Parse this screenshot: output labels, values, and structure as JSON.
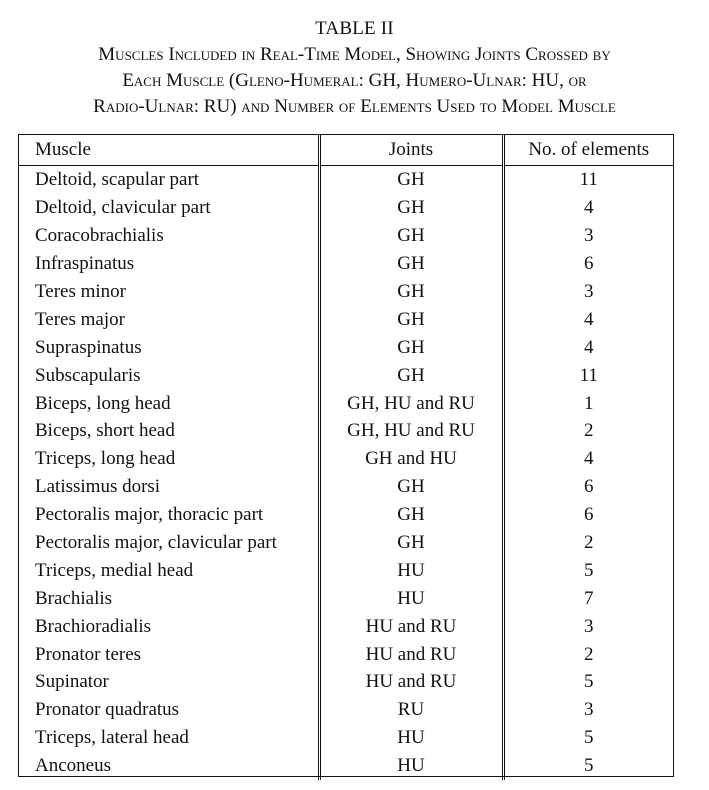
{
  "caption": {
    "title": "TABLE II",
    "lines": [
      "Muscles Included in Real-Time Model, Showing Joints Crossed by",
      "Each Muscle (Gleno-Humeral: GH, Humero-Ulnar: HU, or",
      "Radio-Ulnar: RU) and Number of Elements Used to Model Muscle"
    ]
  },
  "table": {
    "headers": [
      "Muscle",
      "Joints",
      "No. of elements"
    ],
    "rows": [
      [
        "Deltoid, scapular part",
        "GH",
        "11"
      ],
      [
        "Deltoid, clavicular part",
        "GH",
        "4"
      ],
      [
        "Coracobrachialis",
        "GH",
        "3"
      ],
      [
        "Infraspinatus",
        "GH",
        "6"
      ],
      [
        "Teres minor",
        "GH",
        "3"
      ],
      [
        "Teres major",
        "GH",
        "4"
      ],
      [
        "Supraspinatus",
        "GH",
        "4"
      ],
      [
        "Subscapularis",
        "GH",
        "11"
      ],
      [
        "Biceps, long head",
        "GH, HU and RU",
        "1"
      ],
      [
        "Biceps, short head",
        "GH, HU and RU",
        "2"
      ],
      [
        "Triceps, long head",
        "GH and HU",
        "4"
      ],
      [
        "Latissimus dorsi",
        "GH",
        "6"
      ],
      [
        "Pectoralis major, thoracic part",
        "GH",
        "6"
      ],
      [
        "Pectoralis major, clavicular part",
        "GH",
        "2"
      ],
      [
        "Triceps, medial head",
        "HU",
        "5"
      ],
      [
        "Brachialis",
        "HU",
        "7"
      ],
      [
        "Brachioradialis",
        "HU and RU",
        "3"
      ],
      [
        "Pronator teres",
        "HU and RU",
        "2"
      ],
      [
        "Supinator",
        "HU and RU",
        "5"
      ],
      [
        "Pronator quadratus",
        "RU",
        "3"
      ],
      [
        "Triceps, lateral head",
        "HU",
        "5"
      ],
      [
        "Anconeus",
        "HU",
        "5"
      ]
    ]
  }
}
